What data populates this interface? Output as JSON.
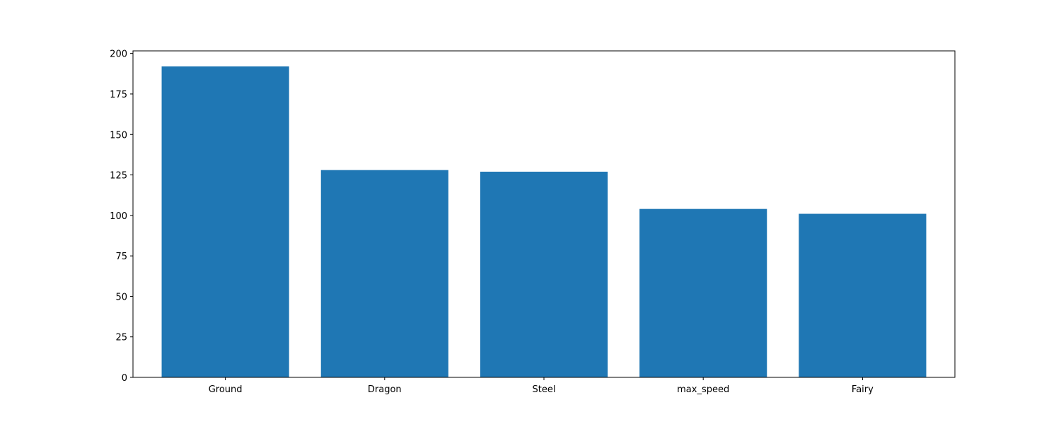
{
  "chart_data": {
    "type": "bar",
    "categories": [
      "Ground",
      "Dragon",
      "Steel",
      "max_speed",
      "Fairy"
    ],
    "values": [
      192,
      128,
      127,
      104,
      101
    ],
    "title": "",
    "xlabel": "",
    "ylabel": "",
    "ylim": [
      0,
      201.6
    ],
    "yticks": [
      0,
      25,
      50,
      75,
      100,
      125,
      150,
      175,
      200
    ],
    "grid": false,
    "bar_color": "#1f77b4"
  }
}
